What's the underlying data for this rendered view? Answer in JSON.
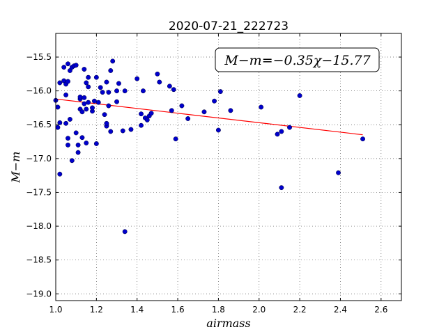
{
  "chart_data": {
    "type": "scatter",
    "title": "2020-07-21_222723",
    "xlabel": "airmass",
    "ylabel": "M−m",
    "xlim": [
      1.0,
      2.7
    ],
    "ylim": [
      -19.1,
      -15.15
    ],
    "y_inverted": true,
    "grid": true,
    "x_ticks": [
      1.0,
      1.2,
      1.4,
      1.6,
      1.8,
      2.0,
      2.2,
      2.4,
      2.6
    ],
    "x_tick_labels": [
      "1.0",
      "1.2",
      "1.4",
      "1.6",
      "1.8",
      "2.0",
      "2.2",
      "2.4",
      "2.6"
    ],
    "y_ticks": [
      -15.5,
      -16.0,
      -16.5,
      -17.0,
      -17.5,
      -18.0,
      -18.5,
      -19.0
    ],
    "y_tick_labels": [
      "−15.5",
      "−16.0",
      "−16.5",
      "−17.0",
      "−17.5",
      "−18.0",
      "−18.5",
      "−19.0"
    ],
    "annotation": "M−m=−0.35χ−15.77",
    "annotation_placement": "top-right",
    "point_color": "#0000cc",
    "fit_color": "#ff0000",
    "fit_line": {
      "slope": -0.35,
      "intercept": -15.77,
      "x_range": [
        1.0,
        2.51
      ]
    },
    "points": [
      {
        "x": 1.0,
        "y": -16.14
      },
      {
        "x": 1.01,
        "y": -16.24
      },
      {
        "x": 1.01,
        "y": -16.54
      },
      {
        "x": 1.02,
        "y": -16.47
      },
      {
        "x": 1.02,
        "y": -15.88
      },
      {
        "x": 1.02,
        "y": -17.23
      },
      {
        "x": 1.04,
        "y": -15.65
      },
      {
        "x": 1.04,
        "y": -15.85
      },
      {
        "x": 1.05,
        "y": -15.9
      },
      {
        "x": 1.05,
        "y": -16.06
      },
      {
        "x": 1.05,
        "y": -16.48
      },
      {
        "x": 1.06,
        "y": -15.6
      },
      {
        "x": 1.06,
        "y": -15.86
      },
      {
        "x": 1.06,
        "y": -16.8
      },
      {
        "x": 1.06,
        "y": -16.7
      },
      {
        "x": 1.07,
        "y": -15.7
      },
      {
        "x": 1.07,
        "y": -16.42
      },
      {
        "x": 1.08,
        "y": -15.65
      },
      {
        "x": 1.08,
        "y": -17.03
      },
      {
        "x": 1.09,
        "y": -15.63
      },
      {
        "x": 1.1,
        "y": -15.62
      },
      {
        "x": 1.1,
        "y": -16.62
      },
      {
        "x": 1.11,
        "y": -16.8
      },
      {
        "x": 1.11,
        "y": -16.91
      },
      {
        "x": 1.12,
        "y": -16.12
      },
      {
        "x": 1.12,
        "y": -16.27
      },
      {
        "x": 1.12,
        "y": -16.09
      },
      {
        "x": 1.13,
        "y": -16.31
      },
      {
        "x": 1.13,
        "y": -16.69
      },
      {
        "x": 1.14,
        "y": -15.68
      },
      {
        "x": 1.14,
        "y": -16.19
      },
      {
        "x": 1.14,
        "y": -16.1
      },
      {
        "x": 1.15,
        "y": -15.88
      },
      {
        "x": 1.15,
        "y": -16.77
      },
      {
        "x": 1.15,
        "y": -16.27
      },
      {
        "x": 1.16,
        "y": -15.94
      },
      {
        "x": 1.16,
        "y": -16.17
      },
      {
        "x": 1.16,
        "y": -15.8
      },
      {
        "x": 1.18,
        "y": -16.3
      },
      {
        "x": 1.18,
        "y": -16.25
      },
      {
        "x": 1.19,
        "y": -16.15
      },
      {
        "x": 1.2,
        "y": -16.78
      },
      {
        "x": 1.2,
        "y": -15.8
      },
      {
        "x": 1.21,
        "y": -16.17
      },
      {
        "x": 1.22,
        "y": -15.95
      },
      {
        "x": 1.23,
        "y": -16.02
      },
      {
        "x": 1.24,
        "y": -16.35
      },
      {
        "x": 1.25,
        "y": -16.52
      },
      {
        "x": 1.25,
        "y": -16.48
      },
      {
        "x": 1.25,
        "y": -15.87
      },
      {
        "x": 1.26,
        "y": -16.22
      },
      {
        "x": 1.26,
        "y": -16.02
      },
      {
        "x": 1.27,
        "y": -16.6
      },
      {
        "x": 1.27,
        "y": -15.7
      },
      {
        "x": 1.28,
        "y": -15.56
      },
      {
        "x": 1.3,
        "y": -16.16
      },
      {
        "x": 1.3,
        "y": -16.0
      },
      {
        "x": 1.31,
        "y": -15.89
      },
      {
        "x": 1.33,
        "y": -16.59
      },
      {
        "x": 1.34,
        "y": -16.0
      },
      {
        "x": 1.34,
        "y": -18.08
      },
      {
        "x": 1.37,
        "y": -16.57
      },
      {
        "x": 1.4,
        "y": -15.82
      },
      {
        "x": 1.42,
        "y": -16.34
      },
      {
        "x": 1.42,
        "y": -16.51
      },
      {
        "x": 1.43,
        "y": -16.0
      },
      {
        "x": 1.44,
        "y": -16.4
      },
      {
        "x": 1.45,
        "y": -16.43
      },
      {
        "x": 1.46,
        "y": -16.37
      },
      {
        "x": 1.47,
        "y": -16.33
      },
      {
        "x": 1.5,
        "y": -15.75
      },
      {
        "x": 1.51,
        "y": -15.87
      },
      {
        "x": 1.56,
        "y": -15.93
      },
      {
        "x": 1.57,
        "y": -16.29
      },
      {
        "x": 1.58,
        "y": -15.98
      },
      {
        "x": 1.59,
        "y": -16.71
      },
      {
        "x": 1.62,
        "y": -16.22
      },
      {
        "x": 1.65,
        "y": -16.41
      },
      {
        "x": 1.73,
        "y": -16.31
      },
      {
        "x": 1.78,
        "y": -16.15
      },
      {
        "x": 1.8,
        "y": -16.58
      },
      {
        "x": 1.81,
        "y": -16.01
      },
      {
        "x": 1.86,
        "y": -16.29
      },
      {
        "x": 2.01,
        "y": -16.24
      },
      {
        "x": 2.09,
        "y": -16.64
      },
      {
        "x": 2.11,
        "y": -16.6
      },
      {
        "x": 2.11,
        "y": -17.43
      },
      {
        "x": 2.15,
        "y": -16.54
      },
      {
        "x": 2.2,
        "y": -16.07
      },
      {
        "x": 2.39,
        "y": -17.21
      },
      {
        "x": 2.51,
        "y": -16.71
      }
    ]
  }
}
